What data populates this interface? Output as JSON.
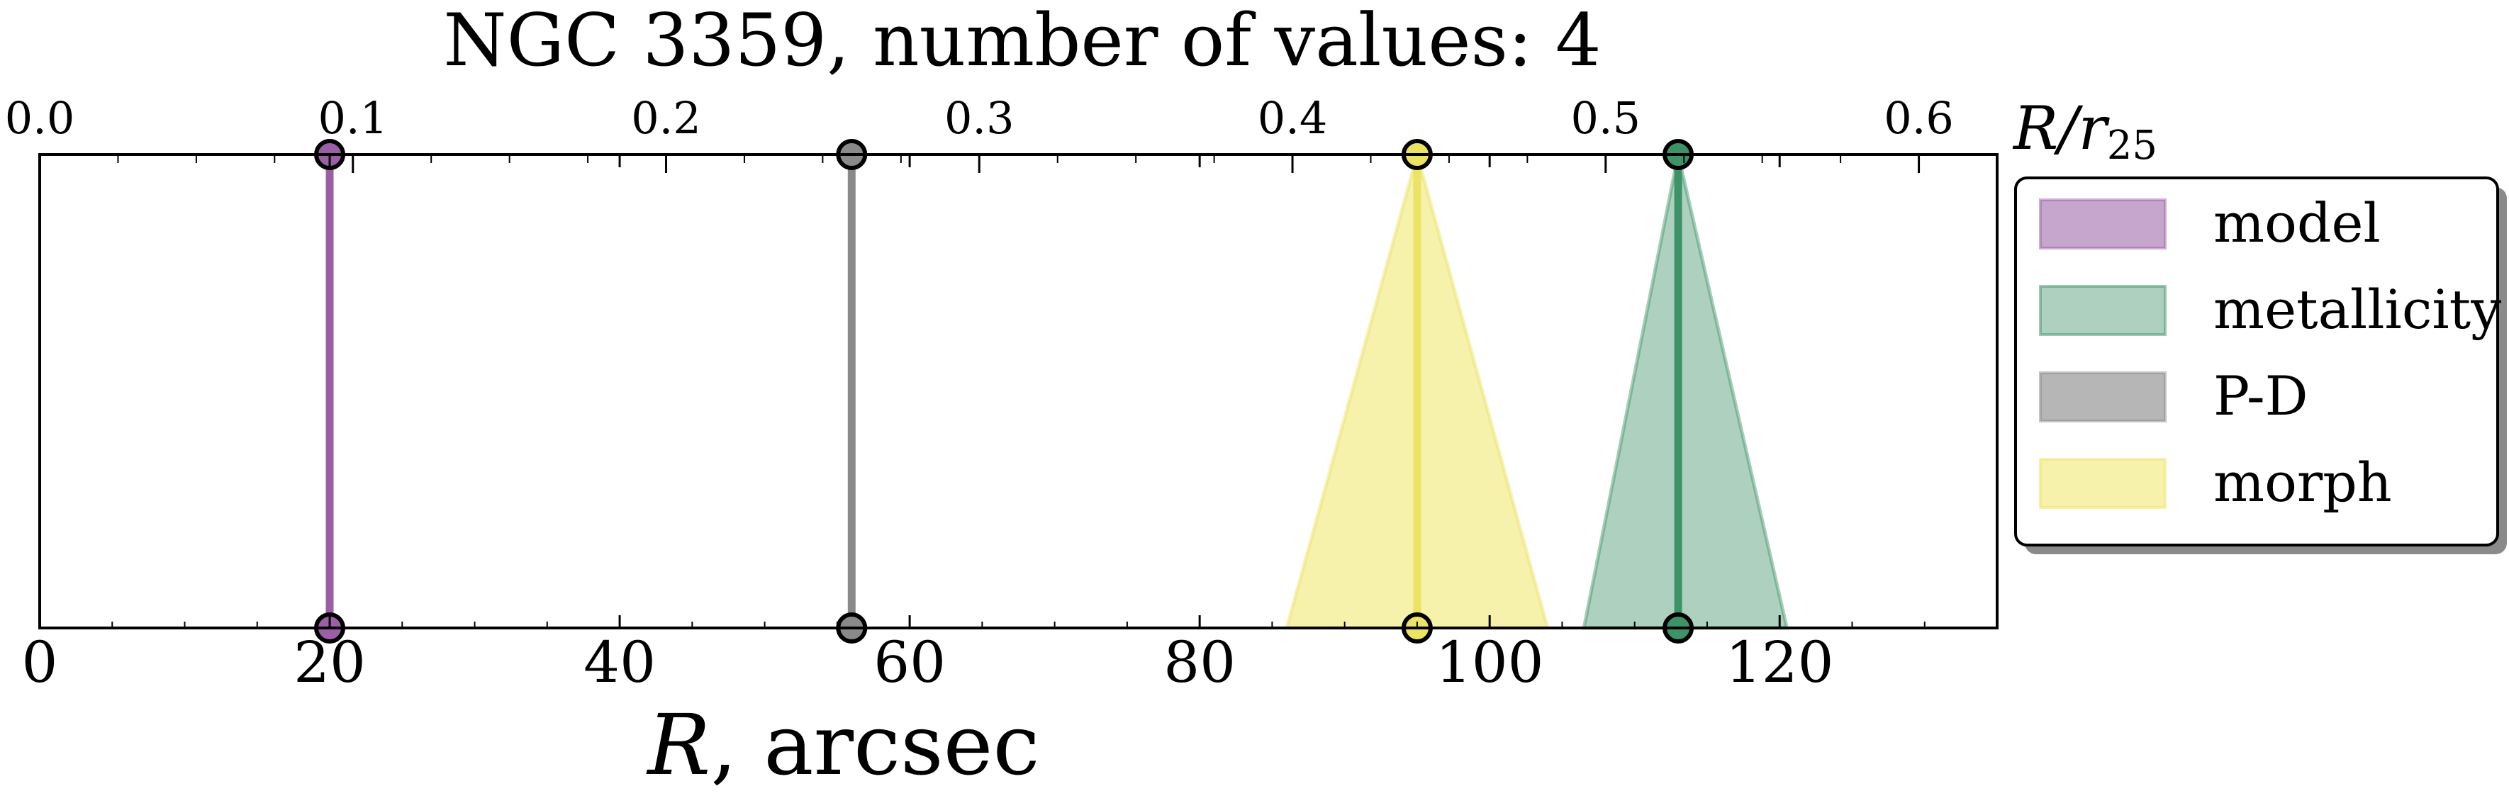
{
  "chart_data": {
    "type": "line",
    "title": "NGC 3359, number of values: 4",
    "xlabel": "R, arcsec",
    "xlabel_var": "R",
    "xlabel_unit": ", arcsec",
    "x2label": "R/r25",
    "x2label_main": "R/r",
    "x2label_sub": "25",
    "xlim": [
      0,
      135
    ],
    "x2lim": [
      0.0,
      0.625
    ],
    "x_ticks": [
      0,
      20,
      40,
      60,
      80,
      100,
      120
    ],
    "x_tick_labels": [
      "0",
      "20",
      "40",
      "60",
      "80",
      "100",
      "120"
    ],
    "x2_ticks": [
      0.0,
      0.1,
      0.2,
      0.3,
      0.4,
      0.5,
      0.6
    ],
    "x2_tick_labels": [
      "0.0",
      "0.1",
      "0.2",
      "0.3",
      "0.4",
      "0.5",
      "0.6"
    ],
    "legend_position": "outside-right-top",
    "series": [
      {
        "name": "model",
        "value": 20,
        "lower": 20,
        "upper": 20,
        "color": "#9b5fa5",
        "fill": "#bd96c4"
      },
      {
        "name": "metallicity",
        "value": 113,
        "lower": 106.5,
        "upper": 120.5,
        "color": "#3e9268",
        "fill": "#9fc9b3"
      },
      {
        "name": "P-D",
        "value": 56,
        "lower": 56,
        "upper": 56,
        "color": "#8a8a8a",
        "fill": "#a9a9a9"
      },
      {
        "name": "morph",
        "value": 95,
        "lower": 86,
        "upper": 104,
        "color": "#ece364",
        "fill": "#f4ee9c"
      }
    ]
  }
}
